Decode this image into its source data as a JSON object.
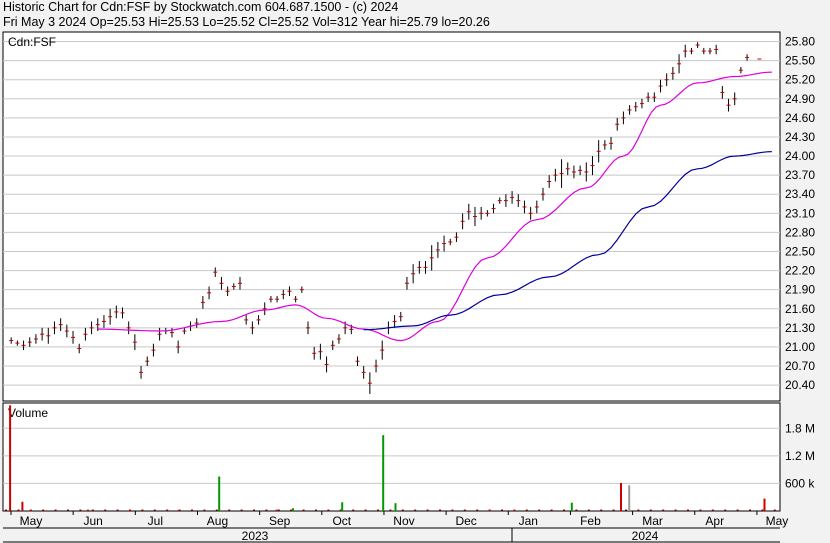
{
  "header": {
    "line1": "Historic Chart for Cdn:FSF by Stockwatch.com 604.687.1500 - (c) 2024",
    "line2": "Fri May  3 2024  Op=25.53  Hi=25.53  Lo=25.52  Cl=25.52  Vol=312  Year hi=25.79  lo=20.26"
  },
  "chart_data": [
    {
      "type": "ohlc",
      "title": "Cdn:FSF",
      "y_ticks": [
        20.4,
        20.7,
        21.0,
        21.3,
        21.6,
        21.9,
        22.2,
        22.5,
        22.8,
        23.1,
        23.4,
        23.7,
        24.0,
        24.3,
        24.6,
        24.9,
        25.2,
        25.5,
        25.8
      ],
      "ylim": [
        20.15,
        25.95
      ],
      "x_months": [
        "May",
        "Jun",
        "Jul",
        "Aug",
        "Sep",
        "Oct",
        "Nov",
        "Dec",
        "Jan",
        "Feb",
        "Mar",
        "Apr",
        "May"
      ],
      "years": [
        "2023",
        "2024"
      ],
      "bars": [
        [
          1,
          21.05,
          21.15
        ],
        [
          2,
          21.02,
          21.1
        ],
        [
          3,
          20.95,
          21.1
        ],
        [
          4,
          21.0,
          21.15
        ],
        [
          5,
          21.05,
          21.2
        ],
        [
          6,
          21.1,
          21.3
        ],
        [
          7,
          21.05,
          21.3
        ],
        [
          8,
          21.2,
          21.4
        ],
        [
          9,
          21.25,
          21.45
        ],
        [
          10,
          21.15,
          21.35
        ],
        [
          11,
          21.05,
          21.25
        ],
        [
          12,
          20.9,
          21.05
        ],
        [
          13,
          21.1,
          21.3
        ],
        [
          14,
          21.2,
          21.4
        ],
        [
          15,
          21.25,
          21.45
        ],
        [
          16,
          21.3,
          21.5
        ],
        [
          17,
          21.35,
          21.6
        ],
        [
          18,
          21.45,
          21.65
        ],
        [
          19,
          21.45,
          21.62
        ],
        [
          20,
          21.2,
          21.4
        ],
        [
          21,
          20.95,
          21.2
        ],
        [
          22,
          20.5,
          20.7
        ],
        [
          23,
          20.7,
          20.85
        ],
        [
          24,
          20.85,
          21.05
        ],
        [
          25,
          21.1,
          21.3
        ],
        [
          26,
          21.2,
          21.3
        ],
        [
          27,
          21.15,
          21.3
        ],
        [
          28,
          20.9,
          21.1
        ],
        [
          29,
          21.2,
          21.3
        ],
        [
          30,
          21.25,
          21.4
        ],
        [
          31,
          21.3,
          21.45
        ],
        [
          32,
          21.6,
          21.8
        ],
        [
          33,
          21.75,
          21.95
        ],
        [
          34,
          22.1,
          22.25
        ],
        [
          35,
          21.9,
          22.1
        ],
        [
          36,
          21.8,
          21.95
        ],
        [
          37,
          21.9,
          22.0
        ],
        [
          38,
          21.9,
          22.1
        ],
        [
          39,
          21.35,
          21.5
        ],
        [
          40,
          21.2,
          21.4
        ],
        [
          41,
          21.35,
          21.5
        ],
        [
          42,
          21.5,
          21.7
        ],
        [
          43,
          21.7,
          21.8
        ],
        [
          44,
          21.7,
          21.8
        ],
        [
          45,
          21.75,
          21.9
        ],
        [
          46,
          21.8,
          21.95
        ],
        [
          47,
          21.7,
          21.8
        ],
        [
          48,
          21.85,
          21.95
        ],
        [
          49,
          21.2,
          21.4
        ],
        [
          50,
          20.8,
          21.0
        ],
        [
          51,
          20.8,
          21.05
        ],
        [
          52,
          20.6,
          20.85
        ],
        [
          53,
          20.95,
          21.1
        ],
        [
          54,
          21.05,
          21.2
        ],
        [
          55,
          21.2,
          21.4
        ],
        [
          56,
          21.2,
          21.35
        ],
        [
          57,
          20.7,
          20.85
        ],
        [
          58,
          20.5,
          20.7
        ],
        [
          59,
          20.26,
          20.6
        ],
        [
          60,
          20.6,
          20.8
        ],
        [
          61,
          20.8,
          21.1
        ],
        [
          62,
          21.2,
          21.4
        ],
        [
          63,
          21.3,
          21.5
        ],
        [
          64,
          21.4,
          21.55
        ],
        [
          65,
          21.9,
          22.1
        ],
        [
          66,
          22.0,
          22.3
        ],
        [
          67,
          22.15,
          22.35
        ],
        [
          68,
          22.15,
          22.35
        ],
        [
          69,
          22.2,
          22.6
        ],
        [
          70,
          22.4,
          22.65
        ],
        [
          71,
          22.5,
          22.75
        ],
        [
          72,
          22.6,
          22.7
        ],
        [
          73,
          22.65,
          22.8
        ],
        [
          74,
          22.85,
          23.1
        ],
        [
          75,
          23.0,
          23.25
        ],
        [
          76,
          22.9,
          23.2
        ],
        [
          77,
          23.0,
          23.2
        ],
        [
          78,
          23.05,
          23.15
        ],
        [
          79,
          23.1,
          23.25
        ],
        [
          80,
          23.25,
          23.35
        ],
        [
          81,
          23.2,
          23.4
        ],
        [
          82,
          23.25,
          23.45
        ],
        [
          83,
          23.2,
          23.4
        ],
        [
          84,
          23.1,
          23.3
        ],
        [
          85,
          23.0,
          23.2
        ],
        [
          86,
          23.1,
          23.3
        ],
        [
          87,
          23.3,
          23.5
        ],
        [
          88,
          23.5,
          23.7
        ],
        [
          89,
          23.6,
          23.8
        ],
        [
          90,
          23.5,
          23.95
        ],
        [
          91,
          23.7,
          23.9
        ],
        [
          92,
          23.65,
          23.85
        ],
        [
          93,
          23.7,
          23.85
        ],
        [
          94,
          23.6,
          23.9
        ],
        [
          95,
          23.7,
          24.0
        ],
        [
          96,
          23.9,
          24.25
        ],
        [
          97,
          24.1,
          24.25
        ],
        [
          98,
          24.1,
          24.3
        ],
        [
          99,
          24.4,
          24.6
        ],
        [
          100,
          24.5,
          24.7
        ],
        [
          101,
          24.65,
          24.8
        ],
        [
          102,
          24.7,
          24.85
        ],
        [
          103,
          24.75,
          24.9
        ],
        [
          104,
          24.85,
          25.0
        ],
        [
          105,
          24.85,
          25.0
        ],
        [
          106,
          25.0,
          25.2
        ],
        [
          107,
          25.1,
          25.3
        ],
        [
          108,
          25.2,
          25.4
        ],
        [
          109,
          25.3,
          25.6
        ],
        [
          110,
          25.55,
          25.75
        ],
        [
          111,
          25.6,
          25.7
        ],
        [
          112,
          25.7,
          25.79
        ],
        [
          113,
          25.6,
          25.7
        ],
        [
          114,
          25.6,
          25.7
        ],
        [
          115,
          25.6,
          25.75
        ],
        [
          116,
          24.9,
          25.1
        ],
        [
          117,
          24.7,
          24.9
        ],
        [
          118,
          24.8,
          25.0
        ],
        [
          119,
          25.3,
          25.4
        ],
        [
          120,
          25.5,
          25.6
        ],
        [
          122,
          25.52,
          25.53
        ]
      ],
      "ma_short": [
        [
          15,
          21.28
        ],
        [
          25,
          21.25
        ],
        [
          35,
          21.4
        ],
        [
          42,
          21.58
        ],
        [
          47,
          21.66
        ],
        [
          52,
          21.45
        ],
        [
          58,
          21.28
        ],
        [
          64,
          21.1
        ],
        [
          70,
          21.4
        ],
        [
          78,
          22.4
        ],
        [
          86,
          23.0
        ],
        [
          94,
          23.5
        ],
        [
          100,
          24.0
        ],
        [
          106,
          24.8
        ],
        [
          112,
          25.15
        ],
        [
          118,
          25.25
        ],
        [
          124,
          25.32
        ]
      ],
      "ma_long": [
        [
          58,
          21.27
        ],
        [
          66,
          21.33
        ],
        [
          72,
          21.5
        ],
        [
          80,
          21.82
        ],
        [
          88,
          22.1
        ],
        [
          96,
          22.45
        ],
        [
          104,
          23.2
        ],
        [
          112,
          23.8
        ],
        [
          118,
          24.0
        ],
        [
          124,
          24.07
        ]
      ],
      "colors": {
        "bar": "#000000",
        "tick": "#cc0000",
        "ma_short": "#dd00dd",
        "ma_long": "#000099"
      }
    },
    {
      "type": "bar",
      "title": "Volume",
      "y_ticks": [
        "600 k",
        "1.2 M",
        "1.8 M"
      ],
      "y_tick_values": [
        600000,
        1200000,
        1800000
      ],
      "ylim": [
        0,
        2350000
      ],
      "volume": [
        [
          1,
          2300000,
          "#cc0000"
        ],
        [
          4,
          200000,
          "#cc0000"
        ],
        [
          6,
          20000,
          "#cc0000"
        ],
        [
          10,
          15000,
          "#cc0000"
        ],
        [
          20,
          30000,
          "#cc0000"
        ],
        [
          30,
          15000,
          "#cc0000"
        ],
        [
          42,
          20000,
          "#cc0000"
        ],
        [
          52,
          750000,
          "#009900"
        ],
        [
          66,
          30000,
          "#cc0000"
        ],
        [
          70,
          60000,
          "#009900"
        ],
        [
          82,
          190000,
          "#009900"
        ],
        [
          92,
          1650000,
          "#009900"
        ],
        [
          95,
          170000,
          "#009900"
        ],
        [
          118,
          30000,
          "#cc0000"
        ],
        [
          124,
          20000,
          "#cc0000"
        ],
        [
          138,
          180000,
          "#009900"
        ],
        [
          150,
          610000,
          "#cc0000"
        ],
        [
          152,
          560000,
          "#999999"
        ],
        [
          185,
          270000,
          "#cc0000"
        ]
      ]
    }
  ]
}
